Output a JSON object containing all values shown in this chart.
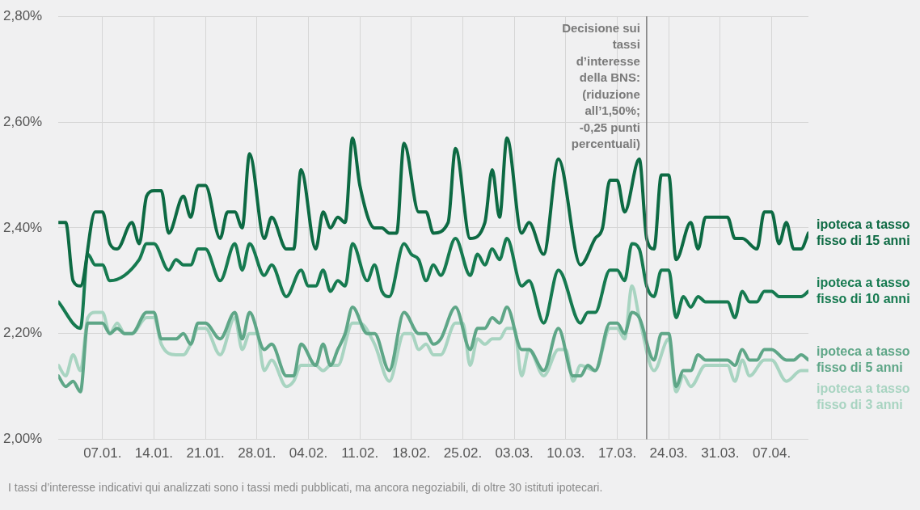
{
  "chart_data": {
    "type": "line",
    "marker": "none",
    "grid": true,
    "xlim": [
      "--01-01",
      "--04-12"
    ],
    "xticks": [
      {
        "value": "--01-07",
        "label": "07.01."
      },
      {
        "value": "--01-14",
        "label": "14.01."
      },
      {
        "value": "--01-21",
        "label": "21.01."
      },
      {
        "value": "--01-28",
        "label": "28.01."
      },
      {
        "value": "--02-04",
        "label": "04.02."
      },
      {
        "value": "--02-11",
        "label": "11.02."
      },
      {
        "value": "--02-18",
        "label": "18.02."
      },
      {
        "value": "--02-25",
        "label": "25.02."
      },
      {
        "value": "--03-03",
        "label": "03.03."
      },
      {
        "value": "--03-10",
        "label": "10.03."
      },
      {
        "value": "--03-17",
        "label": "17.03."
      },
      {
        "value": "--03-24",
        "label": "24.03."
      },
      {
        "value": "--03-31",
        "label": "31.03."
      },
      {
        "value": "--04-07",
        "label": "07.04."
      }
    ],
    "ylim": [
      2.0,
      2.8
    ],
    "yticks": [
      {
        "value": 2.0,
        "label": "2,00%"
      },
      {
        "value": 2.2,
        "label": "2,20%"
      },
      {
        "value": 2.4,
        "label": "2,40%"
      },
      {
        "value": 2.6,
        "label": "2,60%"
      },
      {
        "value": 2.8,
        "label": "2,80%"
      }
    ],
    "ref_lines": [
      {
        "axis": "x",
        "value": "--03-21",
        "label": "Decisione sui tassi d’interesse della BNS: (riduzione all’1,50%; -0,25 punti percentuali)",
        "color": "#7a7a7a"
      }
    ],
    "annotations": [
      "I tassi d’interesse indicativi qui analizzati sono i tassi medi pubblicati, ma ancora negoziabili, di oltre 30 istituti ipotecari."
    ],
    "series": [
      {
        "name": "ipoteca a tasso fisso di 15 anni",
        "color": "#0d6a43",
        "x": [
          "--01-01",
          "--01-02",
          "--01-03",
          "--01-04",
          "--01-06",
          "--01-07",
          "--01-08",
          "--01-09",
          "--01-11",
          "--01-12",
          "--01-13",
          "--01-14",
          "--01-15",
          "--01-16",
          "--01-18",
          "--01-19",
          "--01-20",
          "--01-21",
          "--01-23",
          "--01-24",
          "--01-25",
          "--01-26",
          "--01-27",
          "--01-29",
          "--01-30",
          "--02-01",
          "--02-02",
          "--02-03",
          "--02-05",
          "--02-06",
          "--02-07",
          "--02-08",
          "--02-09",
          "--02-10",
          "--02-11",
          "--02-13",
          "--02-14",
          "--02-15",
          "--02-16",
          "--02-17",
          "--02-19",
          "--02-20",
          "--02-21",
          "--02-23",
          "--02-24",
          "--02-26",
          "--02-28",
          "--02-29",
          "--03-01",
          "--03-02",
          "--03-04",
          "--03-05",
          "--03-07",
          "--03-09",
          "--03-12",
          "--03-14",
          "--03-15",
          "--03-16",
          "--03-17",
          "--03-18",
          "--03-20",
          "--03-21",
          "--03-22",
          "--03-23",
          "--03-24",
          "--03-25",
          "--03-27",
          "--03-28",
          "--03-29",
          "--04-01",
          "--04-02",
          "--04-03",
          "--04-05",
          "--04-06",
          "--04-07",
          "--04-08",
          "--04-09",
          "--04-10",
          "--04-11",
          "--04-12"
        ],
        "values": [
          2.41,
          2.41,
          2.3,
          2.29,
          2.43,
          2.43,
          2.37,
          2.36,
          2.41,
          2.37,
          2.46,
          2.47,
          2.47,
          2.39,
          2.46,
          2.42,
          2.48,
          2.48,
          2.38,
          2.43,
          2.43,
          2.4,
          2.54,
          2.38,
          2.42,
          2.36,
          2.36,
          2.51,
          2.36,
          2.43,
          2.4,
          2.42,
          2.41,
          2.57,
          2.48,
          2.4,
          2.4,
          2.39,
          2.39,
          2.56,
          2.43,
          2.43,
          2.39,
          2.41,
          2.55,
          2.38,
          2.41,
          2.51,
          2.42,
          2.57,
          2.39,
          2.41,
          2.35,
          2.53,
          2.33,
          2.38,
          2.4,
          2.49,
          2.49,
          2.43,
          2.53,
          2.38,
          2.36,
          2.5,
          2.5,
          2.34,
          2.41,
          2.36,
          2.42,
          2.42,
          2.38,
          2.38,
          2.36,
          2.43,
          2.43,
          2.37,
          2.41,
          2.36,
          2.36,
          2.39
        ]
      },
      {
        "name": "ipoteca a tasso fisso di 10 anni",
        "color": "#167a50",
        "x": [
          "--01-01",
          "--01-04",
          "--01-05",
          "--01-06",
          "--01-07",
          "--01-08",
          "--01-12",
          "--01-13",
          "--01-14",
          "--01-16",
          "--01-17",
          "--01-18",
          "--01-19",
          "--01-20",
          "--01-21",
          "--01-23",
          "--01-25",
          "--01-26",
          "--01-27",
          "--01-29",
          "--01-30",
          "--02-01",
          "--02-03",
          "--02-04",
          "--02-05",
          "--02-06",
          "--02-07",
          "--02-08",
          "--02-09",
          "--02-10",
          "--02-12",
          "--02-13",
          "--02-14",
          "--02-15",
          "--02-17",
          "--02-18",
          "--02-19",
          "--02-20",
          "--02-21",
          "--02-22",
          "--02-24",
          "--02-26",
          "--02-27",
          "--02-28",
          "--02-29",
          "--03-01",
          "--03-02",
          "--03-04",
          "--03-05",
          "--03-07",
          "--03-09",
          "--03-12",
          "--03-13",
          "--03-14",
          "--03-16",
          "--03-17",
          "--03-18",
          "--03-19",
          "--03-20",
          "--03-21",
          "--03-22",
          "--03-23",
          "--03-24",
          "--03-25",
          "--03-26",
          "--03-27",
          "--03-28",
          "--03-29",
          "--04-01",
          "--04-02",
          "--04-03",
          "--04-04",
          "--04-05",
          "--04-06",
          "--04-07",
          "--04-08",
          "--04-11",
          "--04-12"
        ],
        "values": [
          2.26,
          2.21,
          2.35,
          2.33,
          2.33,
          2.3,
          2.34,
          2.37,
          2.37,
          2.32,
          2.34,
          2.33,
          2.33,
          2.36,
          2.36,
          2.3,
          2.37,
          2.32,
          2.37,
          2.31,
          2.33,
          2.27,
          2.32,
          2.29,
          2.29,
          2.32,
          2.28,
          2.3,
          2.29,
          2.37,
          2.3,
          2.33,
          2.28,
          2.27,
          2.37,
          2.35,
          2.34,
          2.3,
          2.33,
          2.31,
          2.38,
          2.31,
          2.35,
          2.33,
          2.36,
          2.34,
          2.38,
          2.29,
          2.3,
          2.22,
          2.32,
          2.22,
          2.24,
          2.24,
          2.32,
          2.32,
          2.3,
          2.37,
          2.36,
          2.29,
          2.27,
          2.32,
          2.32,
          2.23,
          2.27,
          2.25,
          2.27,
          2.26,
          2.26,
          2.23,
          2.28,
          2.26,
          2.26,
          2.28,
          2.28,
          2.27,
          2.27,
          2.28
        ]
      },
      {
        "name": "ipoteca a tasso fisso di 5 anni",
        "color": "#5ea687",
        "x": [
          "--01-01",
          "--01-02",
          "--01-03",
          "--01-04",
          "--01-05",
          "--01-06",
          "--01-07",
          "--01-08",
          "--01-09",
          "--01-10",
          "--01-11",
          "--01-13",
          "--01-14",
          "--01-15",
          "--01-17",
          "--01-18",
          "--01-19",
          "--01-20",
          "--01-21",
          "--01-23",
          "--01-25",
          "--01-26",
          "--01-27",
          "--01-29",
          "--01-30",
          "--02-01",
          "--02-02",
          "--02-03",
          "--02-05",
          "--02-06",
          "--02-07",
          "--02-08",
          "--02-09",
          "--02-10",
          "--02-12",
          "--02-13",
          "--02-15",
          "--02-17",
          "--02-19",
          "--02-20",
          "--02-21",
          "--02-22",
          "--02-24",
          "--02-26",
          "--02-27",
          "--02-28",
          "--02-29",
          "--03-01",
          "--03-02",
          "--03-04",
          "--03-05",
          "--03-07",
          "--03-09",
          "--03-11",
          "--03-12",
          "--03-13",
          "--03-14",
          "--03-16",
          "--03-17",
          "--03-18",
          "--03-19",
          "--03-20",
          "--03-22",
          "--03-23",
          "--03-24",
          "--03-25",
          "--03-26",
          "--03-27",
          "--03-28",
          "--03-29",
          "--04-01",
          "--04-02",
          "--04-03",
          "--04-04",
          "--04-05",
          "--04-06",
          "--04-07",
          "--04-09",
          "--04-10",
          "--04-11",
          "--04-12"
        ],
        "values": [
          2.12,
          2.1,
          2.11,
          2.09,
          2.22,
          2.22,
          2.22,
          2.2,
          2.21,
          2.2,
          2.2,
          2.24,
          2.24,
          2.19,
          2.19,
          2.2,
          2.18,
          2.22,
          2.22,
          2.19,
          2.24,
          2.19,
          2.24,
          2.17,
          2.18,
          2.12,
          2.12,
          2.18,
          2.14,
          2.18,
          2.14,
          2.17,
          2.2,
          2.25,
          2.2,
          2.2,
          2.13,
          2.24,
          2.2,
          2.2,
          2.18,
          2.19,
          2.25,
          2.17,
          2.21,
          2.21,
          2.23,
          2.22,
          2.25,
          2.17,
          2.17,
          2.13,
          2.21,
          2.12,
          2.12,
          2.14,
          2.13,
          2.22,
          2.22,
          2.2,
          2.24,
          2.23,
          2.15,
          2.2,
          2.2,
          2.1,
          2.13,
          2.13,
          2.16,
          2.15,
          2.15,
          2.14,
          2.17,
          2.15,
          2.15,
          2.17,
          2.17,
          2.15,
          2.15,
          2.16,
          2.15
        ]
      },
      {
        "name": "ipoteca a tasso fisso di 3 anni",
        "color": "#a8d4c1",
        "x": [
          "--01-01",
          "--01-02",
          "--01-03",
          "--01-04",
          "--01-05",
          "--01-06",
          "--01-07",
          "--01-08",
          "--01-09",
          "--01-10",
          "--01-11",
          "--01-13",
          "--01-14",
          "--01-15",
          "--01-17",
          "--01-18",
          "--01-19",
          "--01-20",
          "--01-21",
          "--01-23",
          "--01-25",
          "--01-26",
          "--01-27",
          "--01-28",
          "--01-29",
          "--01-30",
          "--02-01",
          "--02-02",
          "--02-03",
          "--02-05",
          "--02-06",
          "--02-07",
          "--02-08",
          "--02-10",
          "--02-11",
          "--02-13",
          "--02-15",
          "--02-17",
          "--02-18",
          "--02-19",
          "--02-20",
          "--02-21",
          "--02-22",
          "--02-24",
          "--02-25",
          "--02-26",
          "--02-27",
          "--02-28",
          "--02-29",
          "--03-01",
          "--03-02",
          "--03-03",
          "--03-04",
          "--03-05",
          "--03-07",
          "--03-09",
          "--03-10",
          "--03-11",
          "--03-12",
          "--03-14",
          "--03-16",
          "--03-17",
          "--03-18",
          "--03-19",
          "--03-20",
          "--03-22",
          "--03-24",
          "--03-25",
          "--03-26",
          "--03-27",
          "--03-29",
          "--04-01",
          "--04-02",
          "--04-03",
          "--04-04",
          "--04-06",
          "--04-07",
          "--04-09",
          "--04-11",
          "--04-12"
        ],
        "values": [
          2.14,
          2.12,
          2.16,
          2.13,
          2.23,
          2.24,
          2.24,
          2.2,
          2.22,
          2.2,
          2.2,
          2.23,
          2.23,
          2.18,
          2.16,
          2.16,
          2.18,
          2.21,
          2.21,
          2.16,
          2.23,
          2.17,
          2.2,
          2.2,
          2.13,
          2.15,
          2.1,
          2.11,
          2.14,
          2.14,
          2.13,
          2.14,
          2.14,
          2.22,
          2.22,
          2.18,
          2.11,
          2.2,
          2.2,
          2.17,
          2.18,
          2.16,
          2.16,
          2.22,
          2.22,
          2.14,
          2.19,
          2.18,
          2.19,
          2.19,
          2.21,
          2.21,
          2.12,
          2.17,
          2.12,
          2.17,
          2.17,
          2.11,
          2.14,
          2.13,
          2.21,
          2.21,
          2.19,
          2.29,
          2.23,
          2.13,
          2.19,
          2.09,
          2.12,
          2.1,
          2.14,
          2.14,
          2.11,
          2.15,
          2.12,
          2.15,
          2.15,
          2.11,
          2.13,
          2.13
        ]
      }
    ]
  }
}
